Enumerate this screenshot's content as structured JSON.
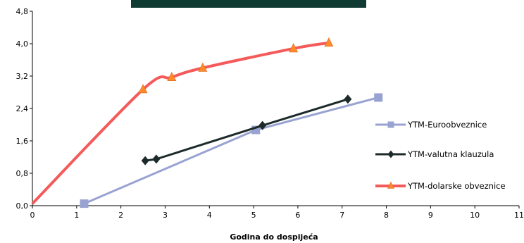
{
  "chart_data": {
    "type": "line",
    "title": "",
    "xlabel": "Godina do dospijeća",
    "ylabel": "",
    "xlim": [
      0,
      11
    ],
    "ylim": [
      0,
      4.8
    ],
    "x_ticks": [
      "0",
      "1",
      "2",
      "3",
      "4",
      "5",
      "6",
      "7",
      "8",
      "9",
      "10",
      "11"
    ],
    "y_ticks": [
      "0,0",
      "0,8",
      "1,6",
      "2,4",
      "3,2",
      "4,0",
      "4,8"
    ],
    "grid": false,
    "legend": "right",
    "series": [
      {
        "name": "YTM-Euroobveznice",
        "color": "#99a3d1",
        "marker": "square",
        "x": [
          1.17,
          5.05,
          7.82
        ],
        "y": [
          0.05,
          1.87,
          2.67
        ]
      },
      {
        "name": "YTM-valutna klauzula",
        "color": "#1d2a2a",
        "marker": "diamond",
        "x": [
          2.55,
          2.8,
          5.2,
          7.13
        ],
        "y": [
          1.11,
          1.15,
          1.98,
          2.63
        ]
      },
      {
        "name": "YTM-dolarske obveznice",
        "color": "#f55a5a",
        "marker": "triangle",
        "x": [
          0.0,
          2.5,
          3.15,
          3.85,
          5.9,
          6.7
        ],
        "y": [
          0.05,
          2.87,
          3.17,
          3.4,
          3.88,
          4.02
        ]
      }
    ]
  }
}
